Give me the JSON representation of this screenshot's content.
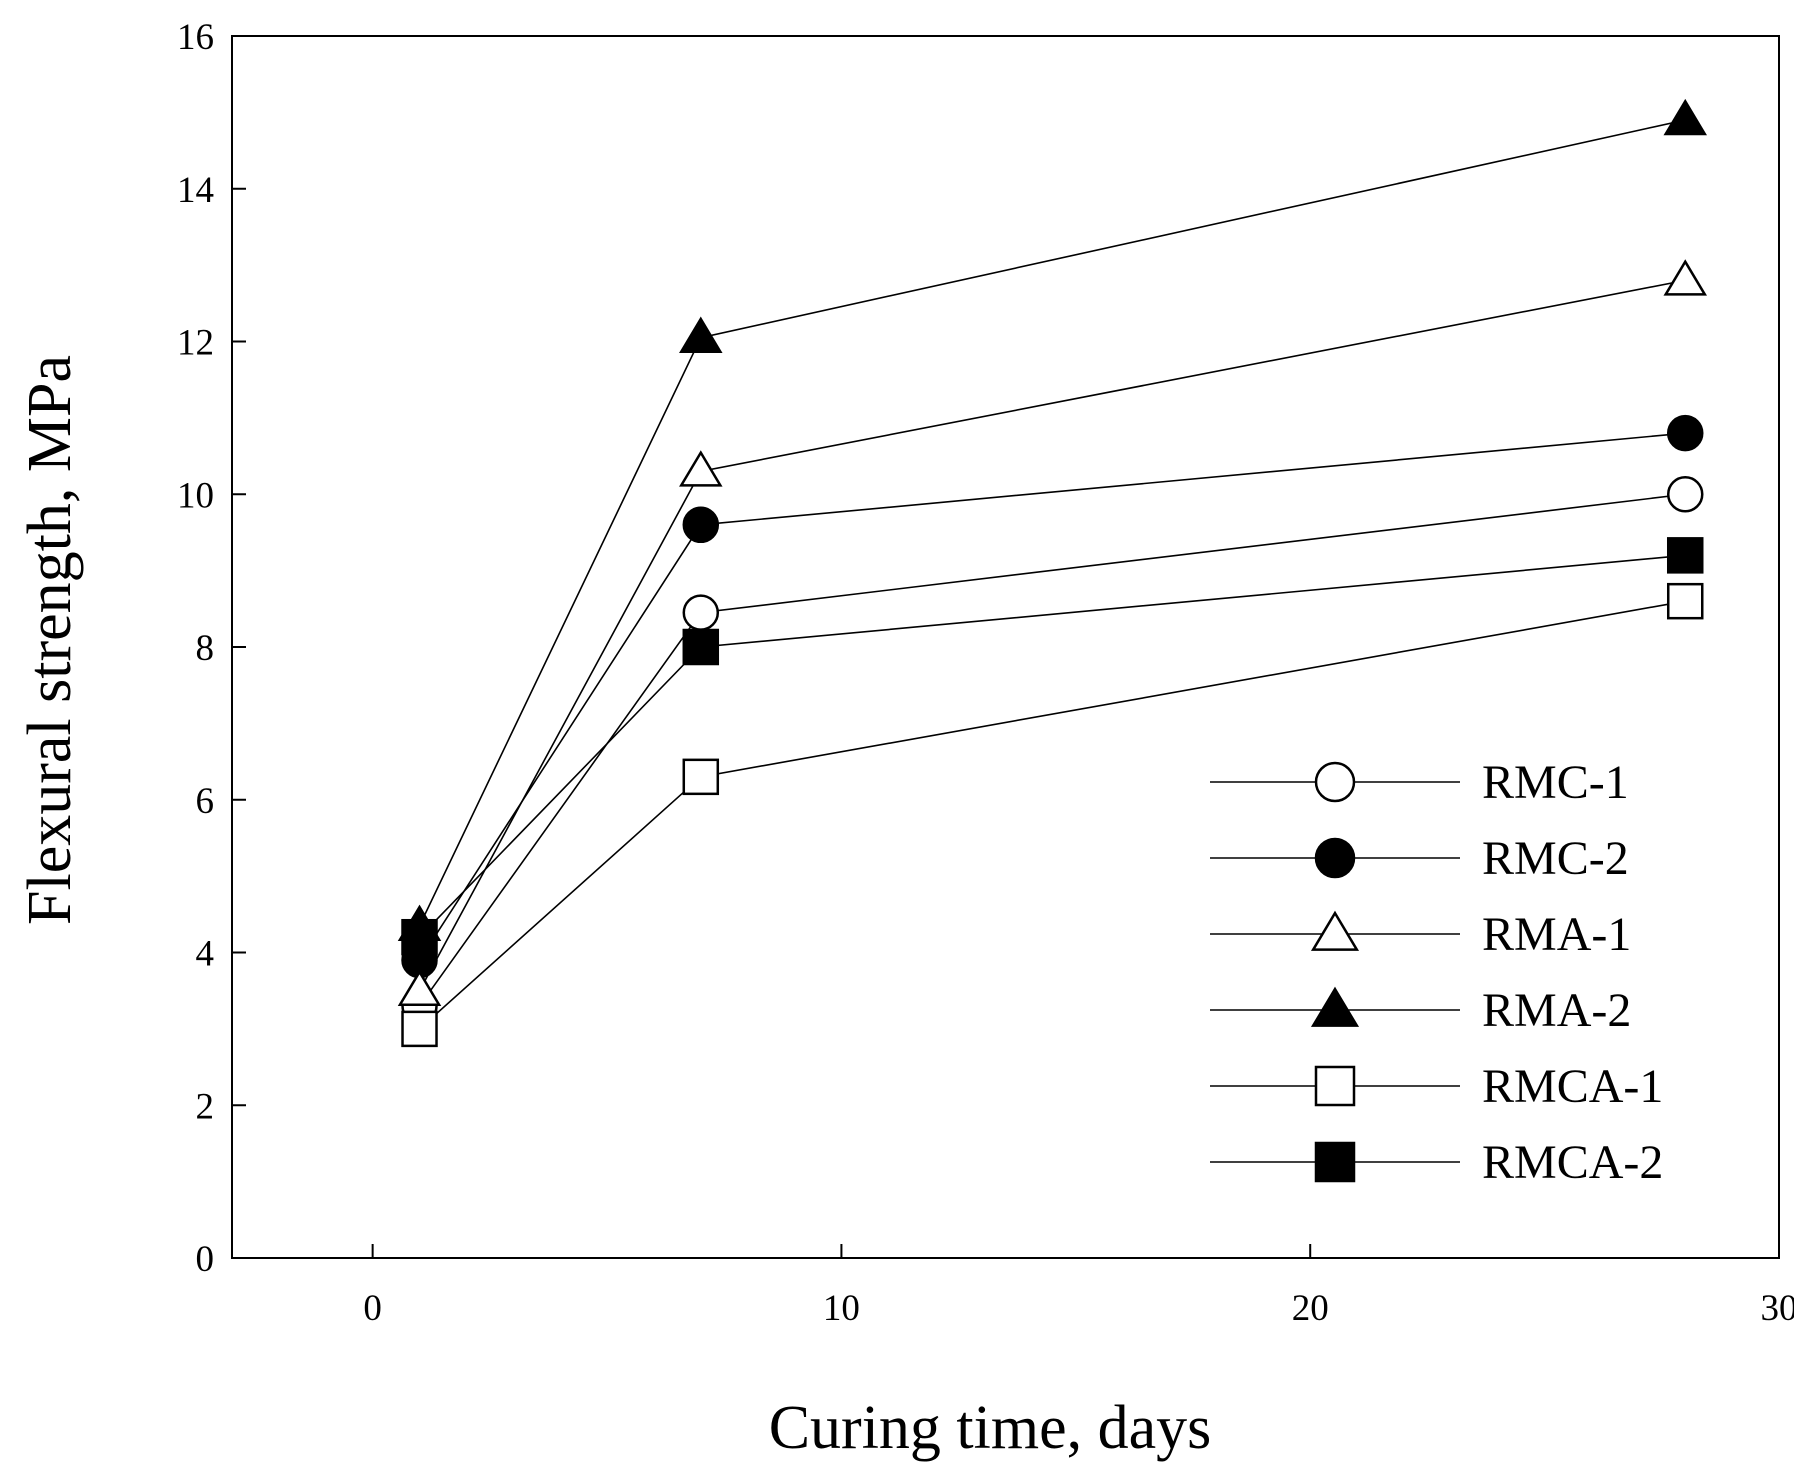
{
  "chart_data": {
    "type": "line",
    "title": "",
    "xlabel": "Curing time, days",
    "ylabel": "Flexural strength, MPa",
    "xlim": [
      -3,
      30
    ],
    "ylim": [
      0,
      16
    ],
    "xticks": [
      0,
      10,
      20,
      30
    ],
    "yticks": [
      0,
      2,
      4,
      6,
      8,
      10,
      12,
      14,
      16
    ],
    "grid": false,
    "legend_position": "bottom-right",
    "x": [
      1,
      7,
      28
    ],
    "series": [
      {
        "name": "RMC-1",
        "marker": "circle",
        "fill": "open",
        "values": [
          3.3,
          8.45,
          10.0
        ]
      },
      {
        "name": "RMC-2",
        "marker": "circle",
        "fill": "filled",
        "values": [
          3.9,
          9.6,
          10.8
        ]
      },
      {
        "name": "RMA-1",
        "marker": "triangle",
        "fill": "open",
        "values": [
          3.5,
          10.3,
          12.8
        ]
      },
      {
        "name": "RMA-2",
        "marker": "triangle",
        "fill": "filled",
        "values": [
          4.35,
          12.05,
          14.9
        ]
      },
      {
        "name": "RMCA-1",
        "marker": "square",
        "fill": "open",
        "values": [
          3.0,
          6.3,
          8.6
        ]
      },
      {
        "name": "RMCA-2",
        "marker": "square",
        "fill": "filled",
        "values": [
          4.2,
          8.0,
          9.2
        ]
      }
    ]
  }
}
